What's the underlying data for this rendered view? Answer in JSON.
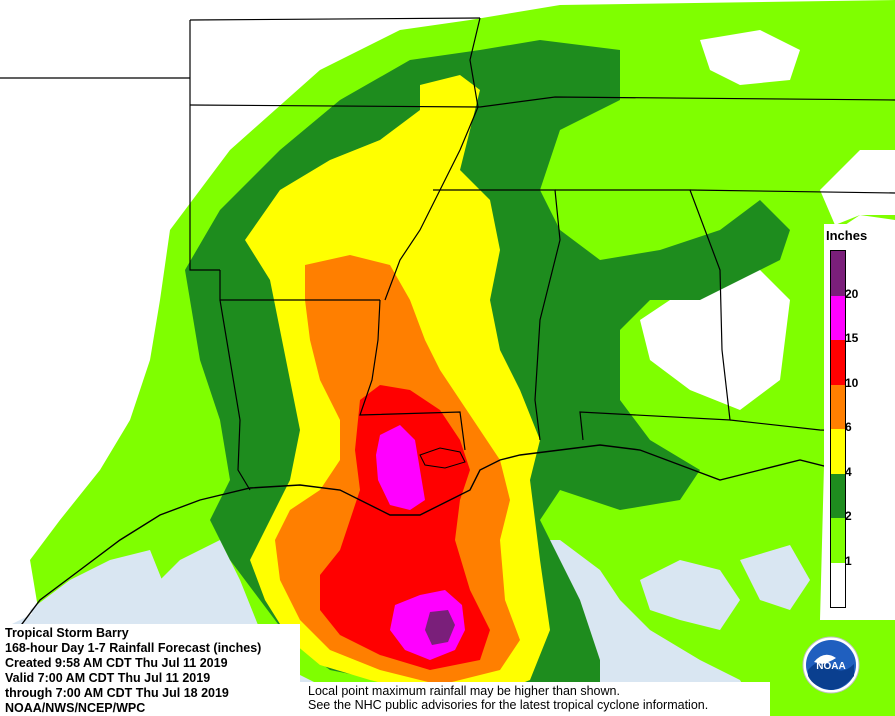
{
  "info": {
    "storm_name": "Tropical Storm Barry",
    "product": "168-hour Day 1-7 Rainfall Forecast (inches)",
    "created": "Created 9:58 AM CDT Thu Jul 11 2019",
    "valid": "Valid 7:00 AM CDT Thu Jul 11 2019",
    "through": "through 7:00 AM CDT Thu Jul 18 2019",
    "source": "NOAA/NWS/NCEP/WPC"
  },
  "notes": {
    "line1": "Local point maximum rainfall may be higher than shown.",
    "line2": "See the NHC public advisories for the latest tropical cyclone information."
  },
  "legend": {
    "title": "Inches",
    "ticks": [
      "20",
      "15",
      "10",
      "6",
      "4",
      "2",
      "1"
    ],
    "colors": [
      "#7a1f7a",
      "#ff00ff",
      "#ff0000",
      "#ff7f00",
      "#ffff00",
      "#1e8c1e",
      "#7fff00",
      "#ffffff"
    ]
  },
  "logo": {
    "text": "NOAA",
    "icon": "noaa-logo-icon"
  },
  "colors": {
    "ocean": "#d9e6f2",
    "land": "#ffffff",
    "lightgreen": "#7fff00",
    "darkgreen": "#1e8c1e",
    "yellow": "#ffff00",
    "orange": "#ff7f00",
    "red": "#ff0000",
    "magenta": "#ff00ff",
    "purple": "#7a1f7a"
  }
}
